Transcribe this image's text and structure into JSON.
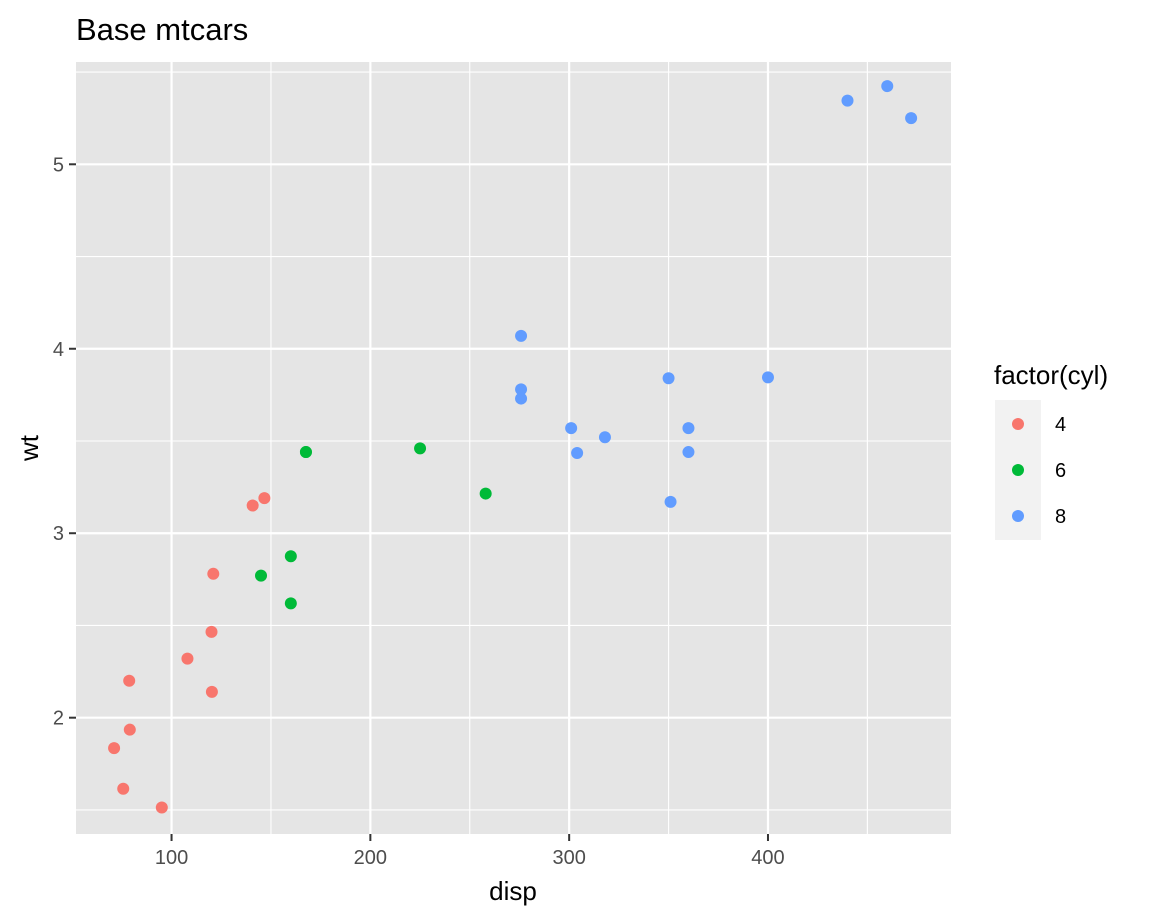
{
  "chart_data": {
    "type": "scatter",
    "title": "Base mtcars",
    "xlabel": "disp",
    "ylabel": "wt",
    "xlim": [
      51.94,
      492.06
    ],
    "ylim": [
      1.3695,
      5.5545
    ],
    "x_ticks": [
      100,
      200,
      300,
      400
    ],
    "y_ticks": [
      2,
      3,
      4,
      5
    ],
    "x_minor": [
      50,
      150,
      250,
      350,
      450
    ],
    "y_minor": [
      1.5,
      2.5,
      3.5,
      4.5,
      5.5
    ],
    "grid": true,
    "panel_background": "#e5e5e5",
    "legend": {
      "title": "factor(cyl)",
      "position": "right",
      "entries": [
        {
          "label": "4",
          "color": "#F8766D"
        },
        {
          "label": "6",
          "color": "#00BA38"
        },
        {
          "label": "8",
          "color": "#619CFF"
        }
      ]
    },
    "series": [
      {
        "name": "4",
        "color": "#F8766D",
        "points": [
          {
            "x": 108,
            "y": 2.32
          },
          {
            "x": 146.7,
            "y": 3.19
          },
          {
            "x": 140.8,
            "y": 3.15
          },
          {
            "x": 78.7,
            "y": 2.2
          },
          {
            "x": 75.7,
            "y": 1.615
          },
          {
            "x": 71.1,
            "y": 1.835
          },
          {
            "x": 120.1,
            "y": 2.465
          },
          {
            "x": 79,
            "y": 1.935
          },
          {
            "x": 120.3,
            "y": 2.14
          },
          {
            "x": 95.1,
            "y": 1.513
          },
          {
            "x": 121,
            "y": 2.78
          }
        ]
      },
      {
        "name": "6",
        "color": "#00BA38",
        "points": [
          {
            "x": 160,
            "y": 2.62
          },
          {
            "x": 160,
            "y": 2.875
          },
          {
            "x": 258,
            "y": 3.215
          },
          {
            "x": 225,
            "y": 3.46
          },
          {
            "x": 167.6,
            "y": 3.44
          },
          {
            "x": 167.6,
            "y": 3.44
          },
          {
            "x": 145,
            "y": 2.77
          }
        ]
      },
      {
        "name": "8",
        "color": "#619CFF",
        "points": [
          {
            "x": 360,
            "y": 3.44
          },
          {
            "x": 360,
            "y": 3.57
          },
          {
            "x": 275.8,
            "y": 4.07
          },
          {
            "x": 275.8,
            "y": 3.73
          },
          {
            "x": 275.8,
            "y": 3.78
          },
          {
            "x": 472,
            "y": 5.25
          },
          {
            "x": 460,
            "y": 5.424
          },
          {
            "x": 440,
            "y": 5.345
          },
          {
            "x": 318,
            "y": 3.52
          },
          {
            "x": 304,
            "y": 3.435
          },
          {
            "x": 350,
            "y": 3.84
          },
          {
            "x": 400,
            "y": 3.845
          },
          {
            "x": 351,
            "y": 3.17
          },
          {
            "x": 301,
            "y": 3.57
          }
        ]
      }
    ]
  }
}
